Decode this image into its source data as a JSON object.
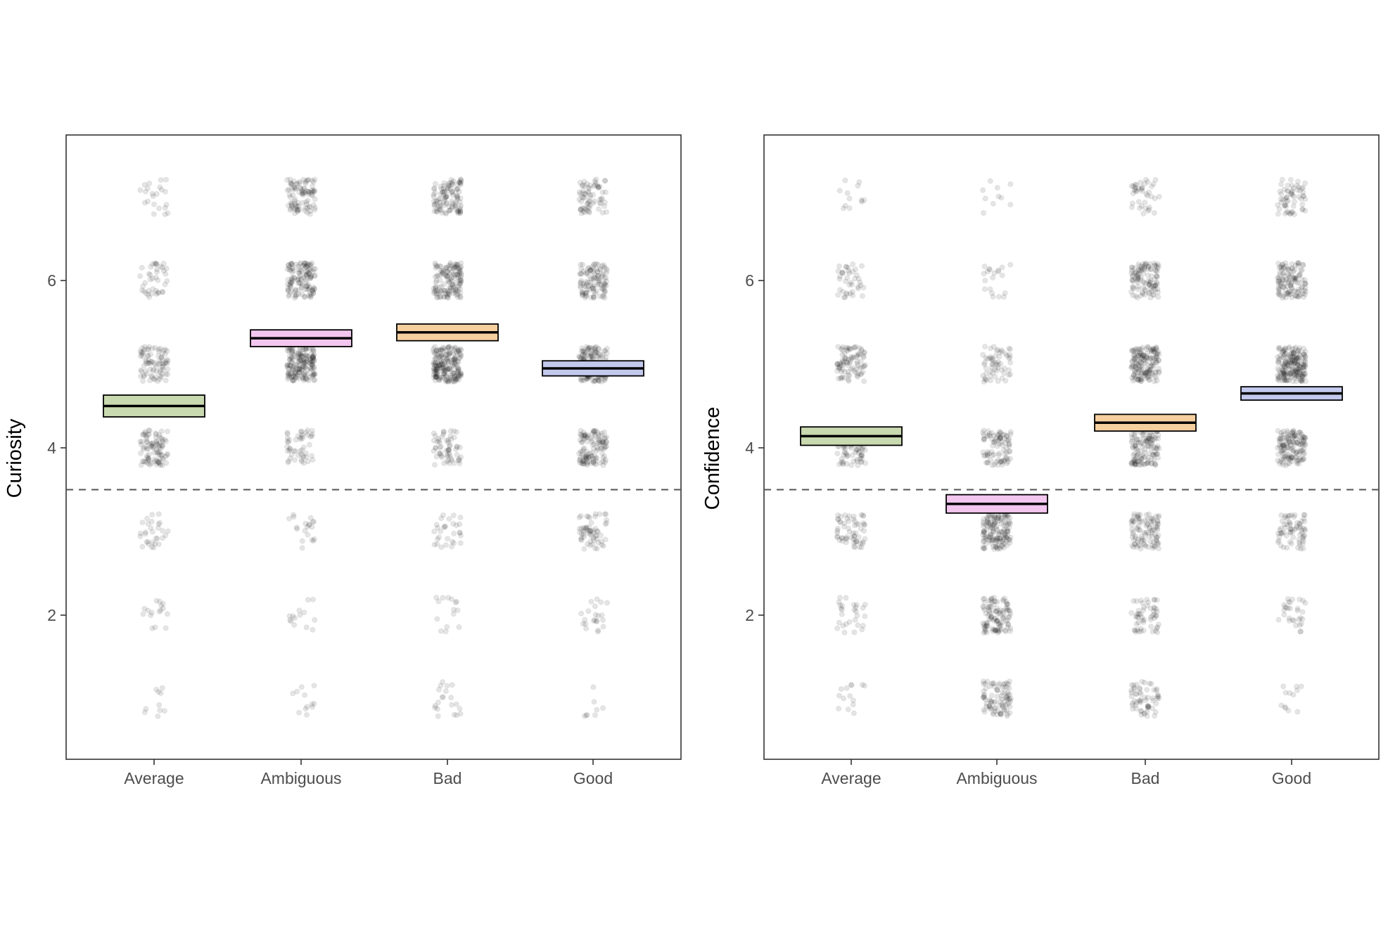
{
  "chart_data": [
    {
      "type": "scatter",
      "subtype": "jittered-points-with-mean-crossbars",
      "ylabel": "Curiosity",
      "xlabel": "",
      "categories": [
        "Average",
        "Ambiguous",
        "Bad",
        "Good"
      ],
      "yticks": [
        2,
        4,
        6
      ],
      "ylim": [
        0.3,
        7.75
      ],
      "reference_line": {
        "y": 3.5,
        "style": "dashed"
      },
      "grid": false,
      "legend": "none",
      "point_color": "#000000",
      "point_opacity": 0.1,
      "means": [
        {
          "category": "Average",
          "mean": 4.5,
          "lower": 4.37,
          "upper": 4.63,
          "fill": "#c9d9b0"
        },
        {
          "category": "Ambiguous",
          "mean": 5.31,
          "lower": 5.21,
          "upper": 5.41,
          "fill": "#f2c6ee"
        },
        {
          "category": "Bad",
          "mean": 5.38,
          "lower": 5.28,
          "upper": 5.48,
          "fill": "#f6cf9f"
        },
        {
          "category": "Good",
          "mean": 4.95,
          "lower": 4.86,
          "upper": 5.04,
          "fill": "#c3c9ec"
        }
      ],
      "response_counts": [
        {
          "category": "Average",
          "counts": {
            "1": 10,
            "2": 16,
            "3": 30,
            "4": 95,
            "5": 85,
            "6": 40,
            "7": 22
          }
        },
        {
          "category": "Ambiguous",
          "counts": {
            "1": 12,
            "2": 14,
            "3": 20,
            "4": 50,
            "5": 180,
            "6": 130,
            "7": 95
          }
        },
        {
          "category": "Bad",
          "counts": {
            "1": 20,
            "2": 15,
            "3": 30,
            "4": 60,
            "5": 200,
            "6": 140,
            "7": 110
          }
        },
        {
          "category": "Good",
          "counts": {
            "1": 8,
            "2": 22,
            "3": 60,
            "4": 120,
            "5": 150,
            "6": 110,
            "7": 70
          }
        }
      ]
    },
    {
      "type": "scatter",
      "subtype": "jittered-points-with-mean-crossbars",
      "ylabel": "Confidence",
      "xlabel": "",
      "categories": [
        "Average",
        "Ambiguous",
        "Bad",
        "Good"
      ],
      "yticks": [
        2,
        4,
        6
      ],
      "ylim": [
        0.3,
        7.75
      ],
      "reference_line": {
        "y": 3.5,
        "style": "dashed"
      },
      "grid": false,
      "legend": "none",
      "point_color": "#000000",
      "point_opacity": 0.1,
      "means": [
        {
          "category": "Average",
          "mean": 4.14,
          "lower": 4.03,
          "upper": 4.25,
          "fill": "#c9d9b0"
        },
        {
          "category": "Ambiguous",
          "mean": 3.33,
          "lower": 3.22,
          "upper": 3.44,
          "fill": "#f2c6ee"
        },
        {
          "category": "Bad",
          "mean": 4.3,
          "lower": 4.2,
          "upper": 4.4,
          "fill": "#f6cf9f"
        },
        {
          "category": "Good",
          "mean": 4.65,
          "lower": 4.57,
          "upper": 4.73,
          "fill": "#c3c9ec"
        }
      ],
      "response_counts": [
        {
          "category": "Average",
          "counts": {
            "1": 14,
            "2": 28,
            "3": 60,
            "4": 90,
            "5": 90,
            "6": 40,
            "7": 12
          }
        },
        {
          "category": "Ambiguous",
          "counts": {
            "1": 90,
            "2": 110,
            "3": 150,
            "4": 90,
            "5": 60,
            "6": 20,
            "7": 10
          }
        },
        {
          "category": "Bad",
          "counts": {
            "1": 60,
            "2": 55,
            "3": 100,
            "4": 130,
            "5": 160,
            "6": 110,
            "7": 40
          }
        },
        {
          "category": "Good",
          "counts": {
            "1": 12,
            "2": 30,
            "3": 70,
            "4": 140,
            "5": 200,
            "6": 120,
            "7": 60
          }
        }
      ]
    }
  ]
}
